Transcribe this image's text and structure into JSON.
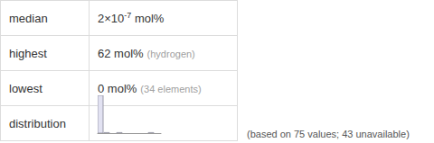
{
  "table": {
    "rows": [
      {
        "label": "median",
        "value": {
          "text": "2×10",
          "sup": "-7",
          "unit": "mol%"
        }
      },
      {
        "label": "highest",
        "value": {
          "text": "62 mol%",
          "note": "(hydrogen)"
        }
      },
      {
        "label": "lowest",
        "value": {
          "text": "0 mol%",
          "note": "(34 elements)"
        }
      },
      {
        "label": "distribution"
      }
    ]
  },
  "footnote": "(based on 75 values; 43 unavailable)",
  "chart_data": {
    "type": "histogram",
    "bins": [
      0,
      7,
      14,
      21,
      28,
      35,
      42,
      49,
      56,
      63,
      70
    ],
    "values": [
      72,
      1,
      0,
      1,
      0,
      0,
      0,
      0,
      1,
      0
    ],
    "ylim": [
      0,
      72
    ],
    "color": "#e2e2f2",
    "tick_labels": false,
    "grid": false
  }
}
